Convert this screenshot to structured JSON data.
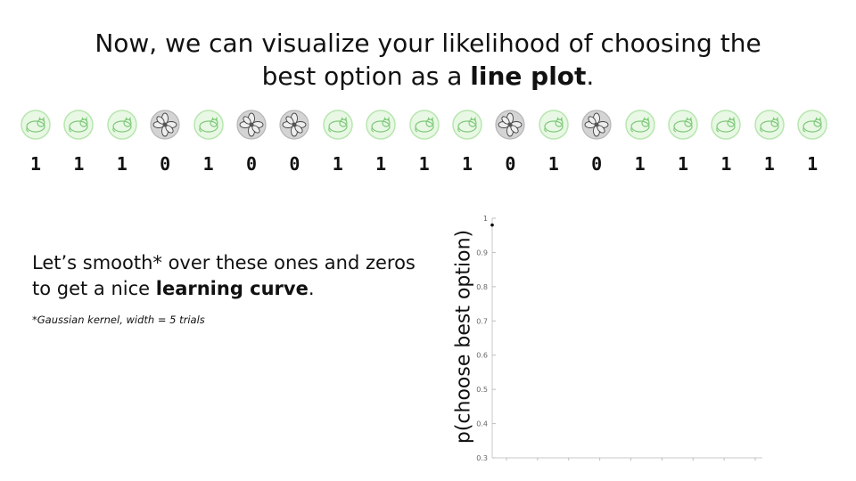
{
  "slide": {
    "title_prefix": "Now, we can visualize your likelihood of choosing the best option as a ",
    "title_bold": "line plot",
    "title_suffix": ".",
    "body_prefix": "Let’s smooth* over these ones and zeros to get a nice ",
    "body_bold": "learning curve",
    "body_suffix": ".",
    "footnote": "*Gaussian kernel, width = 5 trials"
  },
  "trials": [
    1,
    1,
    1,
    0,
    1,
    0,
    0,
    1,
    1,
    1,
    1,
    0,
    1,
    0,
    1,
    1,
    1,
    1,
    1
  ],
  "icons": {
    "correct": "cat-icon",
    "incorrect": "flower-icon",
    "correct_color": "#b8e6b0",
    "correct_bg": "#e8f8e4",
    "incorrect_bg": "#d4d4d4"
  },
  "chart_data": {
    "type": "line",
    "ylabel": "p(choose best option)",
    "xlabel": "",
    "ylim": [
      0.3,
      1
    ],
    "yticks": [
      "0.3",
      "0.4",
      "0.5",
      "0.6",
      "0.7",
      "0.8",
      "0.9",
      "1"
    ],
    "xticks_count": 9,
    "series": [
      {
        "x": [
          1
        ],
        "y": [
          0.98
        ]
      }
    ]
  }
}
